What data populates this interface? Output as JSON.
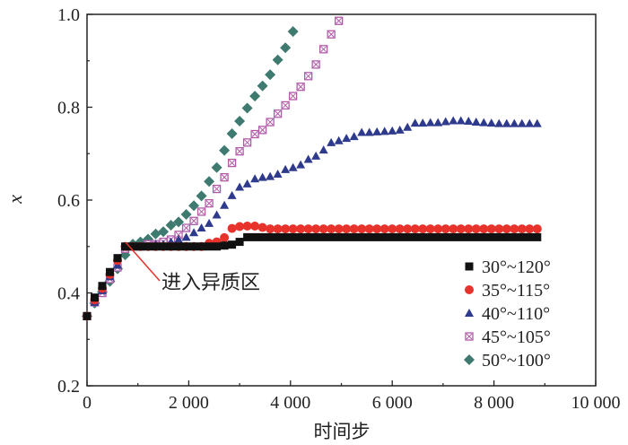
{
  "chart_data": {
    "type": "scatter",
    "title": "",
    "xlabel": "时间步",
    "ylabel": "x",
    "xlim": [
      0,
      10000
    ],
    "ylim": [
      0.2,
      1.0
    ],
    "xticks": [
      0,
      2000,
      4000,
      6000,
      8000,
      10000
    ],
    "xtick_labels": [
      "0",
      "2 000",
      "4 000",
      "6 000",
      "8 000",
      "10 000"
    ],
    "yticks": [
      0.2,
      0.4,
      0.6,
      0.8,
      1.0
    ],
    "ytick_labels": [
      "0.2",
      "0.4",
      "0.6",
      "0.8",
      "1.0"
    ],
    "grid": false,
    "legend_position": "right-center",
    "annotation": {
      "text": "进入异质区",
      "x": 750,
      "y": 0.5
    },
    "series": [
      {
        "name": "30°~120°",
        "marker": "square",
        "color": "#111111",
        "x_start": 0,
        "x_step": 150,
        "y": [
          0.35,
          0.39,
          0.415,
          0.445,
          0.475,
          0.5,
          0.5,
          0.5,
          0.5,
          0.5,
          0.5,
          0.5,
          0.5,
          0.5,
          0.5,
          0.5,
          0.5,
          0.5,
          0.502,
          0.504,
          0.51,
          0.52,
          0.52,
          0.52,
          0.52,
          0.52,
          0.52,
          0.52,
          0.52,
          0.52,
          0.52,
          0.52,
          0.52,
          0.52,
          0.52,
          0.52,
          0.52,
          0.52,
          0.52,
          0.52,
          0.52,
          0.52,
          0.52,
          0.52,
          0.52,
          0.52,
          0.52,
          0.52,
          0.52,
          0.52,
          0.52,
          0.52,
          0.52,
          0.52,
          0.52,
          0.52,
          0.52,
          0.52,
          0.52,
          0.52
        ]
      },
      {
        "name": "35°~115°",
        "marker": "circle",
        "color": "#e8322c",
        "x_start": 0,
        "x_step": 150,
        "y": [
          0.35,
          0.385,
          0.41,
          0.44,
          0.47,
          0.5,
          0.5,
          0.5,
          0.5,
          0.5,
          0.5,
          0.5,
          0.5,
          0.5,
          0.5,
          0.5,
          0.507,
          0.51,
          0.519,
          0.539,
          0.543,
          0.544,
          0.544,
          0.541,
          0.538,
          0.538,
          0.538,
          0.538,
          0.538,
          0.538,
          0.538,
          0.538,
          0.538,
          0.538,
          0.538,
          0.538,
          0.538,
          0.538,
          0.538,
          0.538,
          0.538,
          0.538,
          0.538,
          0.538,
          0.538,
          0.538,
          0.538,
          0.538,
          0.538,
          0.538,
          0.538,
          0.538,
          0.538,
          0.538,
          0.538,
          0.538,
          0.538,
          0.538,
          0.538,
          0.538
        ]
      },
      {
        "name": "40°~110°",
        "marker": "triangle",
        "color": "#2e3a8c",
        "x_start": 0,
        "x_step": 150,
        "y": [
          0.35,
          0.38,
          0.405,
          0.435,
          0.46,
          0.5,
          0.5,
          0.5,
          0.5,
          0.505,
          0.505,
          0.51,
          0.515,
          0.52,
          0.53,
          0.54,
          0.55,
          0.568,
          0.589,
          0.61,
          0.628,
          0.635,
          0.646,
          0.649,
          0.651,
          0.656,
          0.666,
          0.67,
          0.676,
          0.688,
          0.695,
          0.708,
          0.724,
          0.728,
          0.733,
          0.737,
          0.746,
          0.746,
          0.747,
          0.748,
          0.749,
          0.751,
          0.757,
          0.766,
          0.766,
          0.767,
          0.767,
          0.769,
          0.771,
          0.771,
          0.77,
          0.768,
          0.767,
          0.766,
          0.765,
          0.765,
          0.765,
          0.765,
          0.765,
          0.765
        ]
      },
      {
        "name": "45°~105°",
        "marker": "crossed-square",
        "color": "#b05aa8",
        "x_start": 0,
        "x_step": 150,
        "y": [
          0.35,
          0.38,
          0.4,
          0.43,
          0.455,
          0.495,
          0.5,
          0.5,
          0.505,
          0.505,
          0.51,
          0.515,
          0.525,
          0.54,
          0.555,
          0.575,
          0.593,
          0.624,
          0.649,
          0.68,
          0.705,
          0.724,
          0.742,
          0.751,
          0.768,
          0.786,
          0.804,
          0.824,
          0.844,
          0.867,
          0.892,
          0.925,
          0.957,
          0.986
        ]
      },
      {
        "name": "50°~100°",
        "marker": "diamond",
        "color": "#3e7a70",
        "x_start": 0,
        "x_step": 150,
        "y": [
          0.35,
          0.378,
          0.402,
          0.425,
          0.452,
          0.482,
          0.505,
          0.51,
          0.516,
          0.527,
          0.532,
          0.546,
          0.553,
          0.569,
          0.588,
          0.609,
          0.64,
          0.67,
          0.707,
          0.743,
          0.77,
          0.798,
          0.824,
          0.846,
          0.87,
          0.902,
          0.928,
          0.963
        ]
      }
    ]
  }
}
